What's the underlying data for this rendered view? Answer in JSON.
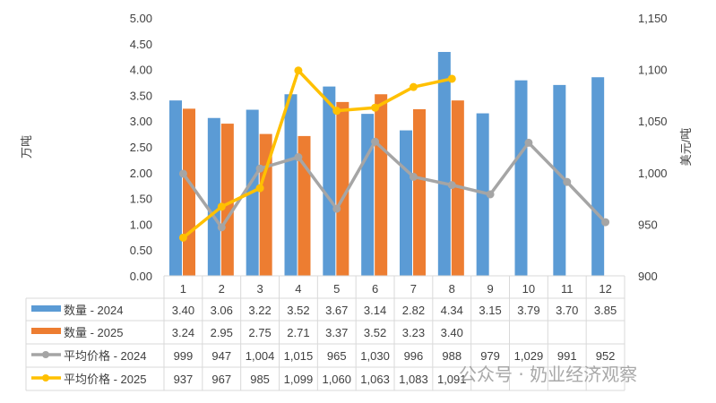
{
  "chart_data": {
    "type": "bar",
    "categories": [
      "1",
      "2",
      "3",
      "4",
      "5",
      "6",
      "7",
      "8",
      "9",
      "10",
      "11",
      "12"
    ],
    "ylabel": "万吨",
    "y2label": "美元/吨",
    "ylim": [
      0,
      5
    ],
    "y2lim": [
      900,
      1150
    ],
    "yticks": [
      "0.00",
      "0.50",
      "1.00",
      "1.50",
      "2.00",
      "2.50",
      "3.00",
      "3.50",
      "4.00",
      "4.50",
      "5.00"
    ],
    "y2ticks": [
      "900",
      "950",
      "1,000",
      "1,050",
      "1,100",
      "1,150"
    ],
    "series": [
      {
        "name": "数量 - 2024",
        "kind": "bar",
        "axis": "left",
        "color": "#5B9BD5",
        "values": [
          3.4,
          3.06,
          3.22,
          3.52,
          3.67,
          3.14,
          2.82,
          4.34,
          3.15,
          3.79,
          3.7,
          3.85
        ],
        "labels": [
          "3.40",
          "3.06",
          "3.22",
          "3.52",
          "3.67",
          "3.14",
          "2.82",
          "4.34",
          "3.15",
          "3.79",
          "3.70",
          "3.85"
        ]
      },
      {
        "name": "数量 - 2025",
        "kind": "bar",
        "axis": "left",
        "color": "#ED7D31",
        "values": [
          3.24,
          2.95,
          2.75,
          2.71,
          3.37,
          3.52,
          3.23,
          3.4,
          null,
          null,
          null,
          null
        ],
        "labels": [
          "3.24",
          "2.95",
          "2.75",
          "2.71",
          "3.37",
          "3.52",
          "3.23",
          "3.40",
          "",
          "",
          "",
          ""
        ]
      },
      {
        "name": "平均价格 - 2024",
        "kind": "line",
        "axis": "right",
        "color": "#A5A5A5",
        "values": [
          999,
          947,
          1004,
          1015,
          965,
          1030,
          996,
          988,
          979,
          1029,
          991,
          952
        ],
        "labels": [
          "999",
          "947",
          "1,004",
          "1,015",
          "965",
          "1,030",
          "996",
          "988",
          "979",
          "1,029",
          "991",
          "952"
        ]
      },
      {
        "name": "平均价格 - 2025",
        "kind": "line",
        "axis": "right",
        "color": "#FFC000",
        "values": [
          937,
          967,
          985,
          1099,
          1060,
          1063,
          1083,
          1091,
          null,
          null,
          null,
          null
        ],
        "labels": [
          "937",
          "967",
          "985",
          "1,099",
          "1,060",
          "1,063",
          "1,083",
          "1,091",
          "",
          "",
          "",
          ""
        ]
      }
    ],
    "legend": "data-table"
  },
  "watermark": "公众号 · 奶业经济观察"
}
